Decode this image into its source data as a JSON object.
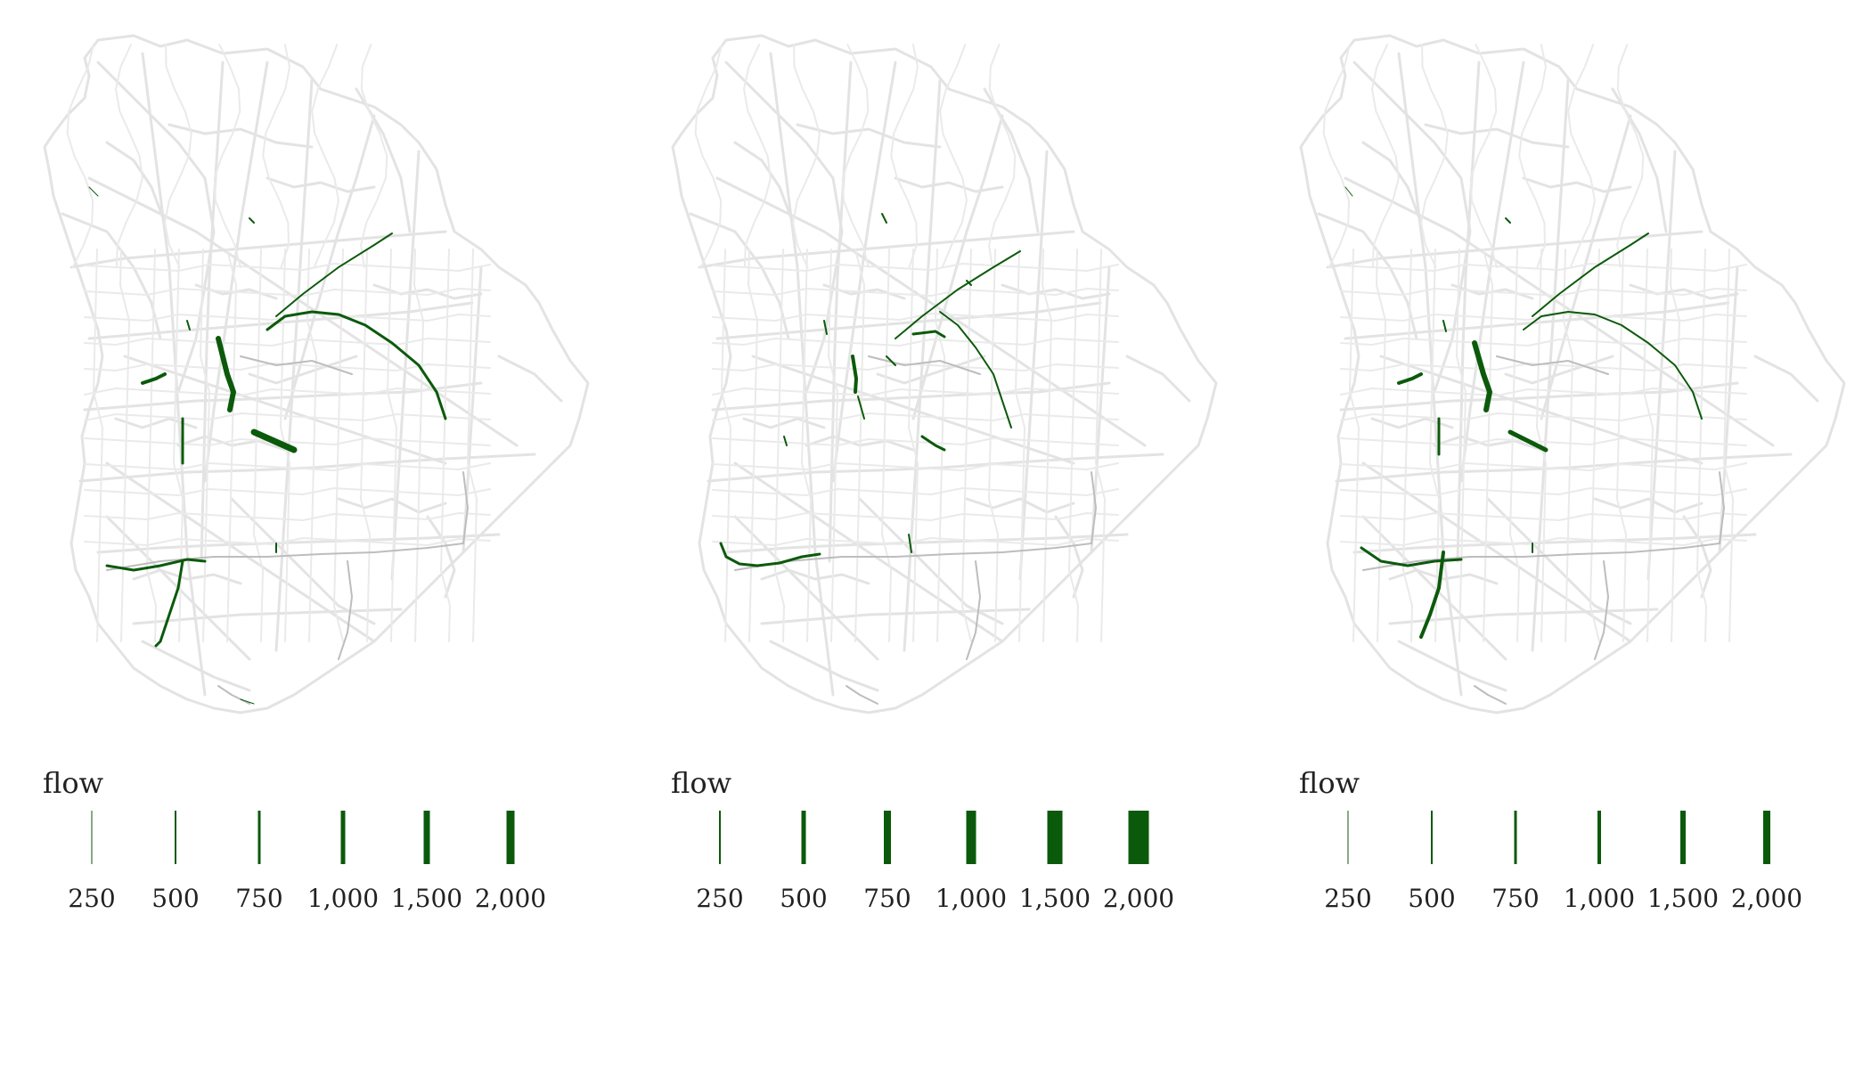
{
  "colors": {
    "network": "#e3e3e3",
    "network_light": "#eaeaea",
    "network_grey": "#bdbdbd",
    "flow": "#0b5a0b",
    "text": "#222222"
  },
  "legend_items": [
    "250",
    "500",
    "750",
    "1,000",
    "1,500",
    "2,000"
  ],
  "panels": [
    {
      "legend_title": "flow",
      "legend_bar_widths": [
        1,
        2,
        3,
        5,
        7,
        9
      ]
    },
    {
      "legend_title": "flow",
      "legend_bar_widths": [
        2,
        5,
        8,
        11,
        17,
        23
      ]
    },
    {
      "legend_title": "flow",
      "legend_bar_widths": [
        1,
        2,
        3,
        4,
        6,
        8
      ]
    }
  ]
}
